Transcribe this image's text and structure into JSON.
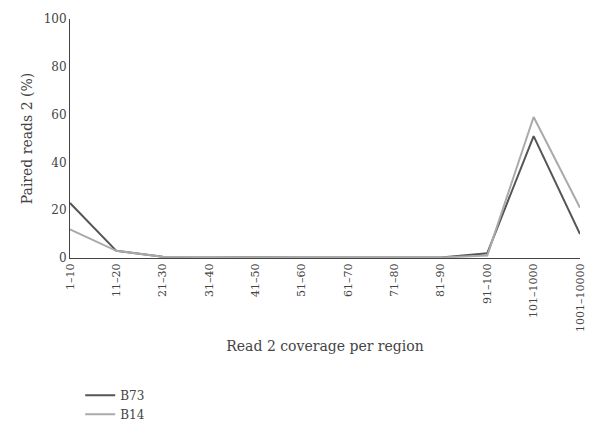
{
  "chart_data": {
    "type": "line",
    "xlabel": "Read 2 coverage per region",
    "ylabel": "Paired reads 2 (%)",
    "categories": [
      "1–10",
      "11–20",
      "21–30",
      "31–40",
      "41–50",
      "51–60",
      "61–70",
      "71–80",
      "81–90",
      "91–100",
      "101–1000",
      "1001–10000"
    ],
    "series": [
      {
        "name": "B73",
        "color": "#555555",
        "values": [
          23,
          3,
          0.5,
          0.3,
          0.2,
          0.2,
          0.2,
          0.2,
          0.2,
          2,
          51,
          10
        ]
      },
      {
        "name": "B14",
        "color": "#aaaaaa",
        "values": [
          12,
          3,
          0.5,
          0.3,
          0.2,
          0.2,
          0.2,
          0.2,
          0.2,
          1,
          59,
          21
        ]
      }
    ],
    "ylim": [
      0,
      100
    ],
    "yticks": [
      0,
      20,
      40,
      60,
      80,
      100
    ],
    "grid": false,
    "legend": "bottom"
  }
}
